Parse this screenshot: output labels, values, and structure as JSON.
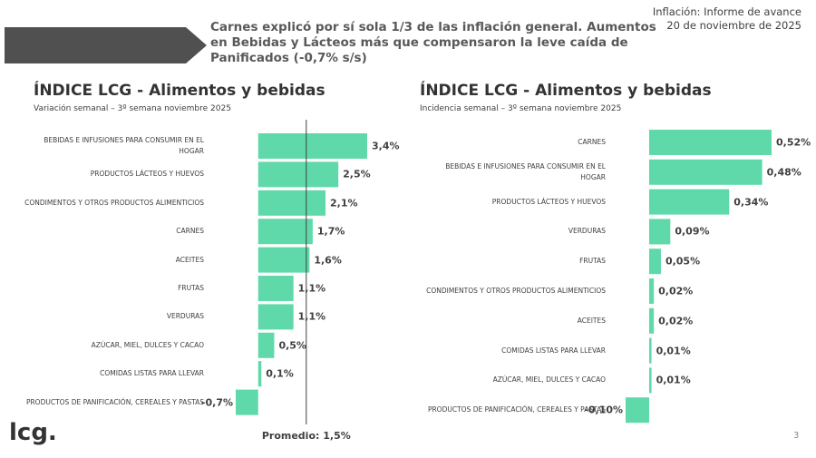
{
  "header": {
    "headline": "Carnes explicó por sí sola 1/3 de las inflación general. Aumentos en Bebidas y Lácteos más que compensaron la leve caída de Panificados (-0,7% s/s)",
    "report": "Inflación: Informe de avance",
    "date": "20 de noviembre de 2025"
  },
  "footer": {
    "logo": "lcg.",
    "page": "3"
  },
  "chart_data": [
    {
      "type": "bar",
      "orientation": "horizontal",
      "title": "ÍNDICE LCG - Alimentos y bebidas",
      "subtitle": "Variación semanal – 3º semana noviembre 2025",
      "color": "#5fd9aa",
      "categories": [
        "BEBIDAS E INFUSIONES PARA CONSUMIR EN EL HOGAR",
        "PRODUCTOS LÁCTEOS Y HUEVOS",
        "CONDIMENTOS Y OTROS PRODUCTOS ALIMENTICIOS",
        "CARNES",
        "ACEITES",
        "FRUTAS",
        "VERDURAS",
        "AZÚCAR, MIEL, DULCES Y CACAO",
        "COMIDAS LISTAS PARA LLEVAR",
        "PRODUCTOS DE PANIFICACIÓN, CEREALES Y PASTAS"
      ],
      "values": [
        3.4,
        2.5,
        2.1,
        1.7,
        1.6,
        1.1,
        1.1,
        0.5,
        0.1,
        -0.7
      ],
      "value_labels": [
        "3,4%",
        "2,5%",
        "2,1%",
        "1,7%",
        "1,6%",
        "1,1%",
        "1,1%",
        "0,5%",
        "0,1%",
        "-0,7%"
      ],
      "reference": {
        "value": 1.5,
        "label": "Promedio: 1,5%"
      }
    },
    {
      "type": "bar",
      "orientation": "horizontal",
      "title": "ÍNDICE LCG - Alimentos y bebidas",
      "subtitle": "Incidencia semanal – 3º semana noviembre 2025",
      "color": "#5fd9aa",
      "categories": [
        "CARNES",
        "BEBIDAS E INFUSIONES PARA CONSUMIR EN EL HOGAR",
        "PRODUCTOS LÁCTEOS Y HUEVOS",
        "VERDURAS",
        "FRUTAS",
        "CONDIMENTOS Y OTROS PRODUCTOS ALIMENTICIOS",
        "ACEITES",
        "COMIDAS LISTAS PARA LLEVAR",
        "AZÚCAR, MIEL, DULCES Y CACAO",
        "PRODUCTOS DE PANIFICACIÓN, CEREALES Y PASTAS"
      ],
      "values": [
        0.52,
        0.48,
        0.34,
        0.09,
        0.05,
        0.02,
        0.02,
        0.01,
        0.01,
        -0.1
      ],
      "value_labels": [
        "0,52%",
        "0,48%",
        "0,34%",
        "0,09%",
        "0,05%",
        "0,02%",
        "0,02%",
        "0,01%",
        "0,01%",
        "-0,10%"
      ]
    }
  ]
}
